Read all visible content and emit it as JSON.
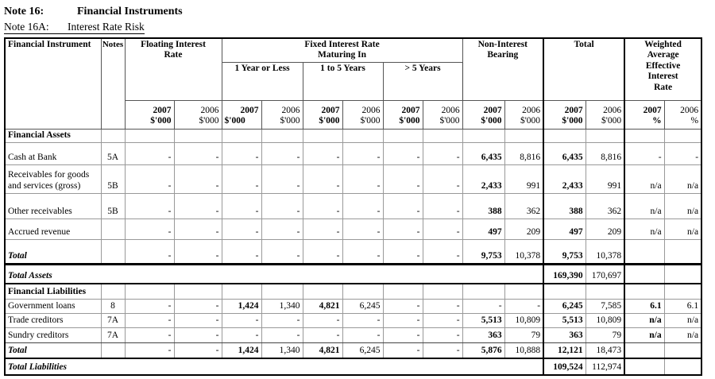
{
  "title": {
    "note_label": "Note 16:",
    "note_title": "Financial Instruments",
    "subnote_label": "Note 16A:",
    "subnote_title": "Interest Rate Risk"
  },
  "colors": {
    "background": "#ffffff",
    "text": "#000000",
    "grid": "#999999",
    "grid_dark": "#444444",
    "emphasis": "#000000"
  },
  "table": {
    "headers": {
      "financial_instrument": "Financial Instrument",
      "notes": "Notes",
      "floating": "Floating Interest\nRate",
      "fixed": "Fixed Interest Rate\nMaturing In",
      "fixed_sub": [
        "1 Year or Less",
        "1 to 5  Years",
        ">  5 Years"
      ],
      "nib": "Non-Interest\nBearing",
      "total": "Total",
      "waeir": "Weighted\nAverage\nEffective\nInterest\nRate"
    },
    "year_headers": [
      {
        "year": "2007",
        "unit": "$'000"
      },
      {
        "year": "2006",
        "unit": "$'000"
      },
      {
        "year": "2007",
        "unit": "$'000"
      },
      {
        "year": "2006",
        "unit": "$'000"
      },
      {
        "year": "2007",
        "unit": "$'000"
      },
      {
        "year": "2006",
        "unit": "$'000"
      },
      {
        "year": "2007",
        "unit": "$'000"
      },
      {
        "year": "2006",
        "unit": "$'000"
      },
      {
        "year": "2007",
        "unit": "$'000"
      },
      {
        "year": "2006",
        "unit": "$'000"
      },
      {
        "year": "2007",
        "unit": "$'000"
      },
      {
        "year": "2006",
        "unit": "$'000"
      },
      {
        "year": "2007",
        "unit": "%"
      },
      {
        "year": "2006",
        "unit": "%"
      }
    ],
    "rows": [
      {
        "type": "section",
        "label": "Financial Assets",
        "note": "",
        "cells": [
          "",
          "",
          "",
          "",
          "",
          "",
          "",
          "",
          "",
          "",
          "",
          "",
          "",
          ""
        ]
      },
      {
        "type": "item",
        "label": "Cash at Bank",
        "note": "5A",
        "cells": [
          "-",
          "-",
          "-",
          "-",
          "-",
          "-",
          "-",
          "-",
          "6,435",
          "8,816",
          "6,435",
          "8,816",
          "-",
          "-"
        ],
        "bold": [
          0,
          0,
          0,
          0,
          0,
          0,
          0,
          0,
          1,
          0,
          1,
          0,
          0,
          0
        ]
      },
      {
        "type": "item",
        "label": "Receivables for goods and services (gross)",
        "note": "5B",
        "cells": [
          "-",
          "-",
          "-",
          "-",
          "-",
          "-",
          "-",
          "-",
          "2,433",
          "991",
          "2,433",
          "991",
          "n/a",
          "n/a"
        ],
        "bold": [
          0,
          0,
          0,
          0,
          0,
          0,
          0,
          0,
          1,
          0,
          1,
          0,
          0,
          0
        ]
      },
      {
        "type": "item",
        "label": "Other receivables",
        "note": "5B",
        "cells": [
          "-",
          "-",
          "-",
          "-",
          "-",
          "-",
          "-",
          "-",
          "388",
          "362",
          "388",
          "362",
          "n/a",
          "n/a"
        ],
        "bold": [
          0,
          0,
          0,
          0,
          0,
          0,
          0,
          0,
          1,
          0,
          1,
          0,
          0,
          0
        ]
      },
      {
        "type": "item",
        "label": "Accrued revenue",
        "note": "",
        "cells": [
          "-",
          "-",
          "-",
          "-",
          "-",
          "-",
          "-",
          "-",
          "497",
          "209",
          "497",
          "209",
          "n/a",
          "n/a"
        ],
        "bold": [
          0,
          0,
          0,
          0,
          0,
          0,
          0,
          0,
          1,
          0,
          1,
          0,
          0,
          0
        ]
      },
      {
        "type": "total",
        "label": "Total",
        "note": "",
        "cells": [
          "-",
          "-",
          "-",
          "-",
          "-",
          "-",
          "-",
          "-",
          "9,753",
          "10,378",
          "9,753",
          "10,378",
          "",
          ""
        ],
        "bold": [
          0,
          0,
          0,
          0,
          0,
          0,
          0,
          0,
          1,
          0,
          1,
          0,
          0,
          0
        ]
      },
      {
        "type": "grand",
        "label": "Total Assets",
        "note": "",
        "cells": [
          "",
          "",
          "",
          "",
          "",
          "",
          "",
          "",
          "",
          "",
          "169,390",
          "170,697",
          "",
          ""
        ],
        "bold": [
          0,
          0,
          0,
          0,
          0,
          0,
          0,
          0,
          0,
          0,
          1,
          0,
          0,
          0
        ]
      },
      {
        "type": "section",
        "label": "Financial Liabilities",
        "note": "",
        "cells": [
          "",
          "",
          "",
          "",
          "",
          "",
          "",
          "",
          "",
          "",
          "",
          "",
          "",
          ""
        ]
      },
      {
        "type": "item",
        "label": "Government loans",
        "note": "8",
        "cells": [
          "-",
          "-",
          "1,424",
          "1,340",
          "4,821",
          "6,245",
          "-",
          "-",
          "-",
          "-",
          "6,245",
          "7,585",
          "6.1",
          "6.1"
        ],
        "bold": [
          0,
          0,
          1,
          0,
          1,
          0,
          0,
          0,
          0,
          0,
          1,
          0,
          1,
          0
        ]
      },
      {
        "type": "item",
        "label": "Trade creditors",
        "note": "7A",
        "cells": [
          "-",
          "-",
          "-",
          "-",
          "-",
          "-",
          "-",
          "-",
          "5,513",
          "10,809",
          "5,513",
          "10,809",
          "n/a",
          "n/a"
        ],
        "bold": [
          0,
          0,
          0,
          0,
          0,
          0,
          0,
          0,
          1,
          0,
          1,
          0,
          1,
          0
        ]
      },
      {
        "type": "item",
        "label": "Sundry creditors",
        "note": "7A",
        "cells": [
          "-",
          "-",
          "-",
          "-",
          "-",
          "-",
          "-",
          "-",
          "363",
          "79",
          "363",
          "79",
          "n/a",
          "n/a"
        ],
        "bold": [
          0,
          0,
          0,
          0,
          0,
          0,
          0,
          0,
          1,
          0,
          1,
          0,
          1,
          0
        ]
      },
      {
        "type": "total",
        "label": "Total",
        "note": "",
        "cells": [
          "-",
          "-",
          "1,424",
          "1,340",
          "4,821",
          "6,245",
          "-",
          "-",
          "5,876",
          "10,888",
          "12,121",
          "18,473",
          "",
          ""
        ],
        "bold": [
          0,
          0,
          1,
          0,
          1,
          0,
          0,
          0,
          1,
          0,
          1,
          0,
          0,
          0
        ]
      },
      {
        "type": "grand",
        "label": "Total Liabilities",
        "note": "",
        "cells": [
          "",
          "",
          "",
          "",
          "",
          "",
          "",
          "",
          "",
          "",
          "109,524",
          "112,974",
          "",
          ""
        ],
        "bold": [
          0,
          0,
          0,
          0,
          0,
          0,
          0,
          0,
          0,
          0,
          1,
          0,
          0,
          0
        ]
      }
    ]
  }
}
